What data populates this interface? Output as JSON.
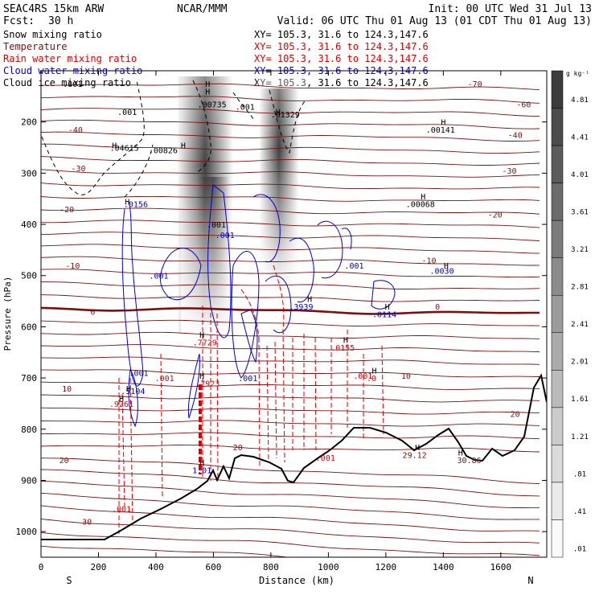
{
  "header": {
    "model": "SEAC4RS 15km ARW",
    "center": "NCAR/MMM",
    "init": "Init: 00 UTC Wed 31 Jul 13",
    "fcst_label": "Fcst:",
    "fcst_value": "30 h",
    "valid": "Valid: 06 UTC Thu 01 Aug 13 (01 CDT Thu 01 Aug 13)"
  },
  "fields": [
    {
      "name": "Snow mixing ratio",
      "xy": "XY= 105.3, 31.6 to 124.3,147.6",
      "color": "#000000"
    },
    {
      "name": "Temperature",
      "xy": "XY= 105.3, 31.6 to 124.3,147.6",
      "color": "#7a1010"
    },
    {
      "name": "Rain water mixing ratio",
      "xy": "XY= 105.3, 31.6 to 124.3,147.6",
      "color": "#dd0000"
    },
    {
      "name": "Cloud water mixing ratio",
      "xy": "XY= 105.3, 31.6 to 124.3,147.6",
      "color": "#0000cc"
    },
    {
      "name": "Cloud ice mixing ratio",
      "xy": "XY= 105.3, 31.6 to 124.3,147.6",
      "color": "#000000"
    }
  ],
  "chart_data": {
    "type": "cross-section contour",
    "xlabel": "Distance (km)",
    "ylabel": "Pressure (hPa)",
    "xlim": [
      0,
      1760
    ],
    "ylim": [
      1050,
      100
    ],
    "x_ticks": [
      0,
      200,
      400,
      600,
      800,
      1000,
      1200,
      1400,
      1600
    ],
    "y_ticks": [
      200,
      300,
      400,
      500,
      600,
      700,
      800,
      900,
      1000
    ],
    "x_end_labels": {
      "left": "S",
      "right": "N"
    },
    "colorbar": {
      "unit": "g kg⁻¹",
      "labels": [
        "4.81",
        "4.41",
        "4.01",
        "3.61",
        "3.21",
        "2.81",
        "2.41",
        "2.01",
        "1.61",
        "1.21",
        ".81",
        ".41",
        ".01"
      ],
      "min": 0.01,
      "max": 5.21,
      "interval": 0.4
    },
    "temperature_labels": [
      {
        "x": 160,
        "p": 980,
        "t": "30"
      },
      {
        "x": 80,
        "p": 860,
        "t": "20"
      },
      {
        "x": 90,
        "p": 720,
        "t": "10"
      },
      {
        "x": 180,
        "p": 570,
        "t": "0"
      },
      {
        "x": 1380,
        "p": 560,
        "t": "0"
      },
      {
        "x": 1650,
        "p": 770,
        "t": "20"
      },
      {
        "x": 1270,
        "p": 695,
        "t": "10"
      },
      {
        "x": 110,
        "p": 480,
        "t": "-10"
      },
      {
        "x": 1350,
        "p": 470,
        "t": "-10"
      },
      {
        "x": 90,
        "p": 370,
        "t": "-20"
      },
      {
        "x": 1580,
        "p": 380,
        "t": "-20"
      },
      {
        "x": 130,
        "p": 290,
        "t": "-30"
      },
      {
        "x": 1630,
        "p": 295,
        "t": "-30"
      },
      {
        "x": 120,
        "p": 215,
        "t": "-40"
      },
      {
        "x": 1650,
        "p": 225,
        "t": "-40"
      },
      {
        "x": 1680,
        "p": 165,
        "t": "-60"
      },
      {
        "x": 1510,
        "p": 125,
        "t": "-70"
      }
    ],
    "annotations": [
      {
        "x": 290,
        "p": 250,
        "t": ".04615",
        "color": "#000000"
      },
      {
        "x": 425,
        "p": 255,
        "t": ".00826",
        "color": "#000000"
      },
      {
        "x": 595,
        "p": 165,
        "t": ".00735",
        "color": "#000000"
      },
      {
        "x": 850,
        "p": 185,
        "t": ".01329",
        "color": "#000000"
      },
      {
        "x": 1390,
        "p": 215,
        "t": ".00141",
        "color": "#000000"
      },
      {
        "x": 1320,
        "p": 360,
        "t": ".00068",
        "color": "#000000"
      },
      {
        "x": 330,
        "p": 360,
        "t": ".0156",
        "color": "#0000cc"
      },
      {
        "x": 905,
        "p": 560,
        "t": ".3939",
        "color": "#0000cc"
      },
      {
        "x": 1195,
        "p": 575,
        "t": ".0114",
        "color": "#0000cc"
      },
      {
        "x": 1395,
        "p": 490,
        "t": ".0030",
        "color": "#0000cc"
      },
      {
        "x": 320,
        "p": 725,
        "t": ".5104",
        "color": "#0000cc"
      },
      {
        "x": 280,
        "p": 750,
        "t": ".9261",
        "color": "#dd0000"
      },
      {
        "x": 570,
        "p": 630,
        "t": ".7729",
        "color": "#dd0000"
      },
      {
        "x": 580,
        "p": 710,
        "t": ".7923",
        "color": "#dd0000"
      },
      {
        "x": 1050,
        "p": 640,
        "t": ".0155",
        "color": "#dd0000"
      },
      {
        "x": 1150,
        "p": 700,
        "t": ".0",
        "color": "#dd0000"
      },
      {
        "x": 1300,
        "p": 850,
        "t": "29.12",
        "color": "#7a1010"
      },
      {
        "x": 1490,
        "p": 860,
        "t": "30.86",
        "color": "#7a1010"
      },
      {
        "x": 560,
        "p": 880,
        "t": "1.01",
        "color": "#0000cc"
      }
    ],
    "contour_labels": [
      {
        "x": 300,
        "p": 180,
        "t": ".001",
        "color": "#000000"
      },
      {
        "x": 710,
        "p": 170,
        "t": ".001",
        "color": "#000000"
      },
      {
        "x": 610,
        "p": 400,
        "t": ".001",
        "color": "#000000"
      },
      {
        "x": 640,
        "p": 420,
        "t": ".001",
        "color": "#0000cc"
      },
      {
        "x": 410,
        "p": 500,
        "t": ".001",
        "color": "#0000cc"
      },
      {
        "x": 1090,
        "p": 480,
        "t": ".001",
        "color": "#0000cc"
      },
      {
        "x": 720,
        "p": 700,
        "t": ".001",
        "color": "#0000cc"
      },
      {
        "x": 340,
        "p": 690,
        "t": ".001",
        "color": "#0000cc"
      },
      {
        "x": 430,
        "p": 700,
        "t": ".001",
        "color": "#dd0000"
      },
      {
        "x": 1120,
        "p": 695,
        "t": ".001",
        "color": "#dd0000"
      },
      {
        "x": 990,
        "p": 855,
        "t": ".001",
        "color": "#dd0000"
      },
      {
        "x": 280,
        "p": 955,
        "t": ".001",
        "color": "#dd0000"
      },
      {
        "x": 110,
        "p": 125,
        "t": ".001",
        "color": "#000000"
      },
      {
        "x": 685,
        "p": 835,
        "t": "20",
        "color": "#7a1010"
      }
    ],
    "highs": [
      {
        "x": 255,
        "p": 245
      },
      {
        "x": 495,
        "p": 245
      },
      {
        "x": 580,
        "p": 140
      },
      {
        "x": 825,
        "p": 180
      },
      {
        "x": 1400,
        "p": 200
      },
      {
        "x": 1330,
        "p": 345
      },
      {
        "x": 300,
        "p": 355
      },
      {
        "x": 935,
        "p": 545
      },
      {
        "x": 1205,
        "p": 560
      },
      {
        "x": 1410,
        "p": 480
      },
      {
        "x": 305,
        "p": 720
      },
      {
        "x": 280,
        "p": 740
      },
      {
        "x": 560,
        "p": 615
      },
      {
        "x": 560,
        "p": 695
      },
      {
        "x": 1060,
        "p": 625
      },
      {
        "x": 1160,
        "p": 685
      },
      {
        "x": 1310,
        "p": 835
      },
      {
        "x": 1460,
        "p": 845
      },
      {
        "x": 560,
        "p": 865
      },
      {
        "x": 580,
        "p": 125
      }
    ]
  }
}
